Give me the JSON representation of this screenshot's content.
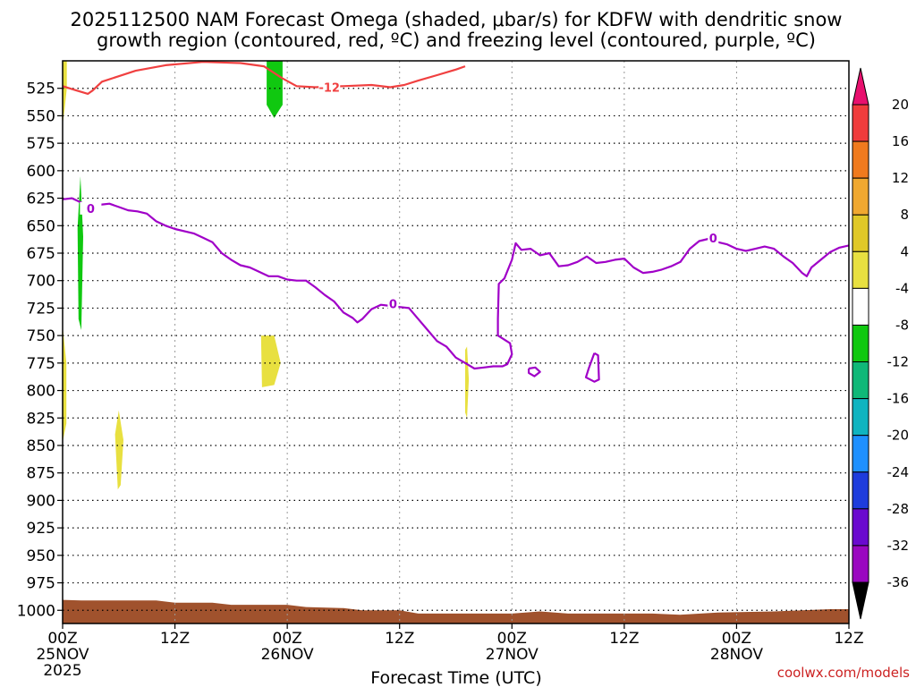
{
  "chart_data": {
    "type": "heatmap",
    "title_line1": "2025112500 NAM Forecast Omega (shaded, μbar/s) for KDFW with dendritic snow",
    "title_line2": "growth region (contoured, red, ºC) and freezing level (contoured, purple, ºC)",
    "xlabel": "Forecast Time (UTC)",
    "source": "coolwx.com/models",
    "xlim_hours": [
      0,
      84
    ],
    "ylim_hPa": [
      1012,
      500
    ],
    "y_ticks": [
      525,
      550,
      575,
      600,
      625,
      650,
      675,
      700,
      725,
      750,
      775,
      800,
      825,
      850,
      875,
      900,
      925,
      950,
      975,
      1000
    ],
    "x_ticks": [
      {
        "h": 0,
        "l1": "00Z",
        "l2": "25NOV",
        "l3": "2025"
      },
      {
        "h": 12,
        "l1": "12Z",
        "l2": "",
        "l3": ""
      },
      {
        "h": 24,
        "l1": "00Z",
        "l2": "26NOV",
        "l3": ""
      },
      {
        "h": 36,
        "l1": "12Z",
        "l2": "",
        "l3": ""
      },
      {
        "h": 48,
        "l1": "00Z",
        "l2": "27NOV",
        "l3": ""
      },
      {
        "h": 60,
        "l1": "12Z",
        "l2": "",
        "l3": ""
      },
      {
        "h": 72,
        "l1": "00Z",
        "l2": "28NOV",
        "l3": ""
      },
      {
        "h": 84,
        "l1": "12Z",
        "l2": "",
        "l3": ""
      }
    ],
    "colorbar": {
      "levels": [
        20,
        16,
        12,
        8,
        4,
        -4,
        -8,
        -12,
        -16,
        -20,
        -24,
        -28,
        -32,
        -36
      ],
      "top_arrow_color": "#e8106e",
      "bottom_arrow_color": "#000000",
      "colors": [
        "#f03c3c",
        "#f07a1e",
        "#f0a830",
        "#e0c828",
        "#e8e040",
        "#ffffff",
        "#10c810",
        "#10b878",
        "#10b4c0",
        "#1e90ff",
        "#1e3cdc",
        "#6a0acf",
        "#9a08c0",
        "#a0a0a0"
      ]
    },
    "omega_shading": [
      {
        "color": "#e8e040",
        "points": [
          [
            0.05,
            500
          ],
          [
            0.45,
            500
          ],
          [
            0.45,
            525
          ],
          [
            0.2,
            545
          ],
          [
            0.05,
            555
          ]
        ]
      },
      {
        "color": "#10c810",
        "points": [
          [
            21.8,
            500
          ],
          [
            23.5,
            500
          ],
          [
            23.5,
            540
          ],
          [
            22.6,
            552
          ],
          [
            21.8,
            540
          ]
        ]
      },
      {
        "color": "#10c810",
        "points": [
          [
            1.6,
            652
          ],
          [
            1.9,
            605
          ],
          [
            2.2,
            660
          ],
          [
            2.0,
            745
          ],
          [
            1.7,
            735
          ]
        ]
      },
      {
        "color": "#e8e040",
        "points": [
          [
            0.05,
            745
          ],
          [
            0.4,
            775
          ],
          [
            0.4,
            830
          ],
          [
            0.05,
            845
          ]
        ]
      },
      {
        "color": "#e8e040",
        "points": [
          [
            5.6,
            840
          ],
          [
            6.0,
            818
          ],
          [
            6.5,
            845
          ],
          [
            6.2,
            886
          ],
          [
            5.9,
            890
          ]
        ]
      },
      {
        "color": "#e8e040",
        "points": [
          [
            21.2,
            750
          ],
          [
            22.6,
            750
          ],
          [
            23.3,
            775
          ],
          [
            22.6,
            795
          ],
          [
            21.3,
            797
          ]
        ]
      },
      {
        "color": "#e8e040",
        "points": [
          [
            43.0,
            763
          ],
          [
            43.2,
            760
          ],
          [
            43.4,
            790
          ],
          [
            43.2,
            825
          ],
          [
            43.0,
            820
          ]
        ]
      }
    ],
    "terrain": {
      "color": "#a0522d",
      "points": [
        [
          0,
          990.5
        ],
        [
          2,
          991
        ],
        [
          10,
          991
        ],
        [
          12,
          993
        ],
        [
          16,
          993
        ],
        [
          18,
          995
        ],
        [
          24,
          995
        ],
        [
          26,
          997
        ],
        [
          30,
          998
        ],
        [
          32,
          1000
        ],
        [
          36,
          1000
        ],
        [
          38,
          1003
        ],
        [
          48,
          1003
        ],
        [
          51,
          1001
        ],
        [
          54,
          1003
        ],
        [
          63,
          1003
        ],
        [
          66,
          1004
        ],
        [
          70,
          1002
        ],
        [
          76,
          1001
        ],
        [
          79,
          1000
        ],
        [
          82,
          999
        ],
        [
          84,
          999
        ]
      ]
    },
    "series": [
      {
        "name": "dendritic -12C",
        "color": "#f04040",
        "label": "-12",
        "label_at": [
          28.5,
          525
        ],
        "points": [
          [
            0,
            523
          ],
          [
            1.5,
            527
          ],
          [
            2.7,
            530
          ],
          [
            3.2,
            527
          ],
          [
            4.2,
            519
          ],
          [
            6,
            514
          ],
          [
            7.8,
            509
          ],
          [
            11,
            504
          ],
          [
            15,
            501
          ],
          [
            19,
            502
          ],
          [
            21.5,
            505
          ],
          [
            23.5,
            516
          ],
          [
            25,
            523
          ],
          [
            27,
            524
          ],
          [
            30,
            523
          ],
          [
            33,
            522
          ],
          [
            35,
            524
          ],
          [
            36.5,
            522
          ],
          [
            38,
            518
          ],
          [
            40,
            513
          ],
          [
            42,
            508
          ],
          [
            43,
            505
          ]
        ]
      },
      {
        "name": "freezing level 0C",
        "color": "#a000c8",
        "label": "0",
        "label_at": [
          3.0,
          635
        ],
        "points": [
          [
            0,
            626
          ],
          [
            1,
            625
          ],
          [
            2,
            629
          ],
          [
            3,
            632
          ],
          [
            4,
            631
          ],
          [
            5,
            630
          ],
          [
            6,
            633
          ],
          [
            7,
            636
          ],
          [
            8,
            637
          ],
          [
            9,
            639
          ],
          [
            10,
            646
          ],
          [
            11,
            650
          ],
          [
            12,
            653
          ],
          [
            14,
            657
          ],
          [
            15,
            661
          ],
          [
            16,
            665
          ],
          [
            17,
            675
          ],
          [
            18,
            681
          ],
          [
            19,
            686
          ],
          [
            20,
            688
          ],
          [
            21,
            692
          ],
          [
            22,
            696
          ],
          [
            23,
            696
          ],
          [
            24,
            699
          ],
          [
            25,
            700
          ],
          [
            26,
            700
          ],
          [
            27,
            706
          ],
          [
            28,
            713
          ],
          [
            29,
            719
          ],
          [
            30,
            729
          ],
          [
            31,
            734
          ],
          [
            31.5,
            738
          ],
          [
            32,
            735
          ],
          [
            33,
            726
          ],
          [
            34,
            722
          ],
          [
            35,
            723
          ],
          [
            36,
            724
          ],
          [
            37,
            725
          ],
          [
            38,
            735
          ],
          [
            39,
            745
          ],
          [
            40,
            755
          ],
          [
            41,
            760
          ],
          [
            42,
            770
          ],
          [
            43,
            775
          ],
          [
            44,
            780
          ],
          [
            45,
            779
          ],
          [
            46,
            778
          ],
          [
            47,
            778
          ],
          [
            47.5,
            776
          ],
          [
            48,
            767
          ],
          [
            47.8,
            757
          ],
          [
            46.5,
            750
          ],
          [
            46.5,
            735
          ],
          [
            46.6,
            703
          ],
          [
            47.2,
            698
          ],
          [
            48,
            681
          ],
          [
            48.4,
            666
          ],
          [
            49,
            672
          ],
          [
            50,
            671
          ],
          [
            51,
            677
          ],
          [
            52,
            675
          ],
          [
            53,
            687
          ],
          [
            54,
            686
          ],
          [
            55,
            683
          ],
          [
            56,
            678
          ],
          [
            57,
            684
          ],
          [
            58,
            683
          ],
          [
            59,
            681
          ],
          [
            60,
            680
          ],
          [
            61,
            688
          ],
          [
            62,
            693
          ],
          [
            63,
            692
          ],
          [
            64,
            690
          ],
          [
            65,
            687
          ],
          [
            66,
            683
          ],
          [
            67,
            671
          ],
          [
            68,
            664
          ],
          [
            69,
            662
          ],
          [
            70,
            665
          ],
          [
            71,
            667
          ],
          [
            72,
            671
          ],
          [
            73,
            673
          ],
          [
            74,
            671
          ],
          [
            75,
            669
          ],
          [
            76,
            671
          ],
          [
            77,
            678
          ],
          [
            78,
            684
          ],
          [
            79,
            693
          ],
          [
            79.5,
            696
          ],
          [
            80,
            688
          ],
          [
            81,
            681
          ],
          [
            82,
            674
          ],
          [
            83,
            670
          ],
          [
            84,
            668
          ]
        ]
      },
      {
        "name": "freezing small loop 1",
        "color": "#a000c8",
        "label": "",
        "label_at": null,
        "points": [
          [
            49.8,
            780
          ],
          [
            50.5,
            779
          ],
          [
            51.0,
            783
          ],
          [
            50.4,
            787
          ],
          [
            49.8,
            784
          ],
          [
            49.8,
            780
          ]
        ]
      },
      {
        "name": "freezing small loop 2",
        "color": "#a000c8",
        "label": "",
        "label_at": null,
        "points": [
          [
            56.8,
            766
          ],
          [
            57.2,
            768
          ],
          [
            57.3,
            790
          ],
          [
            56.8,
            792
          ],
          [
            55.9,
            788
          ],
          [
            56.2,
            780
          ],
          [
            56.8,
            766
          ]
        ]
      }
    ],
    "extra_labels": [
      {
        "text": "0",
        "at": [
          35.3,
          722
        ],
        "color": "#a000c8"
      },
      {
        "text": "0",
        "at": [
          69.5,
          662
        ],
        "color": "#a000c8"
      }
    ]
  }
}
